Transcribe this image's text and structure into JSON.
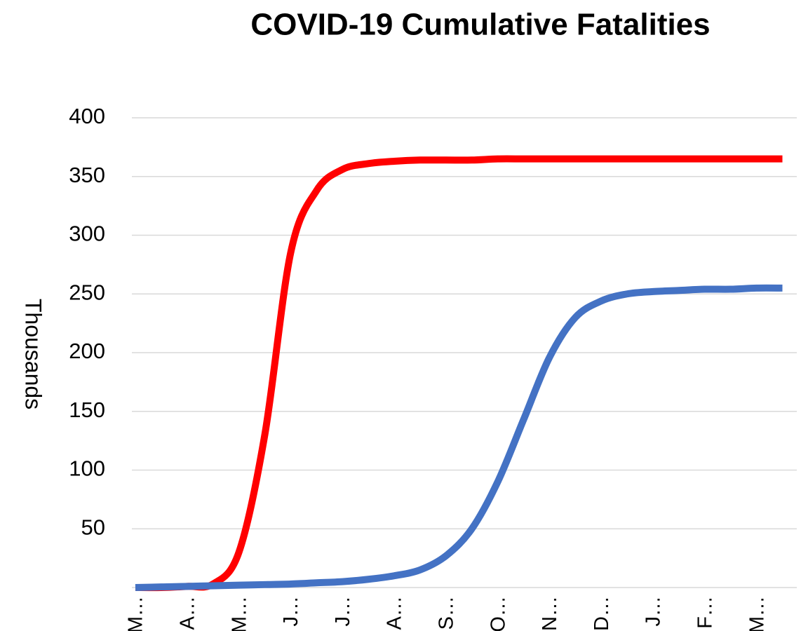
{
  "chart_data": {
    "type": "line",
    "title": "COVID-19 Cumulative Fatalities",
    "y_label": "Thousands",
    "categories": [
      "M…",
      null,
      "A…",
      null,
      "M…",
      null,
      "J…",
      null,
      "J…",
      null,
      "A…",
      null,
      "S…",
      null,
      "O…",
      null,
      "N…",
      null,
      "D…",
      null,
      "J…",
      null,
      "F…",
      null,
      "M…",
      null
    ],
    "series": [
      {
        "color": "#ff0000",
        "values": [
          0,
          0,
          1,
          3,
          30,
          130,
          285,
          338,
          356,
          361,
          363,
          364,
          364,
          364,
          365,
          365,
          365,
          365,
          365,
          365,
          365,
          365,
          365,
          365,
          365,
          365
        ]
      },
      {
        "color": "#4472c4",
        "values": [
          0,
          0.5,
          1,
          1.5,
          2,
          2.5,
          3,
          4,
          5,
          7,
          10,
          15,
          27,
          50,
          90,
          143,
          196,
          230,
          244,
          250,
          252,
          253,
          254,
          254,
          255,
          255
        ]
      }
    ],
    "ylim": [
      0,
      400
    ],
    "yticks": [
      50,
      100,
      150,
      200,
      250,
      300,
      350,
      400
    ],
    "grid": true
  }
}
